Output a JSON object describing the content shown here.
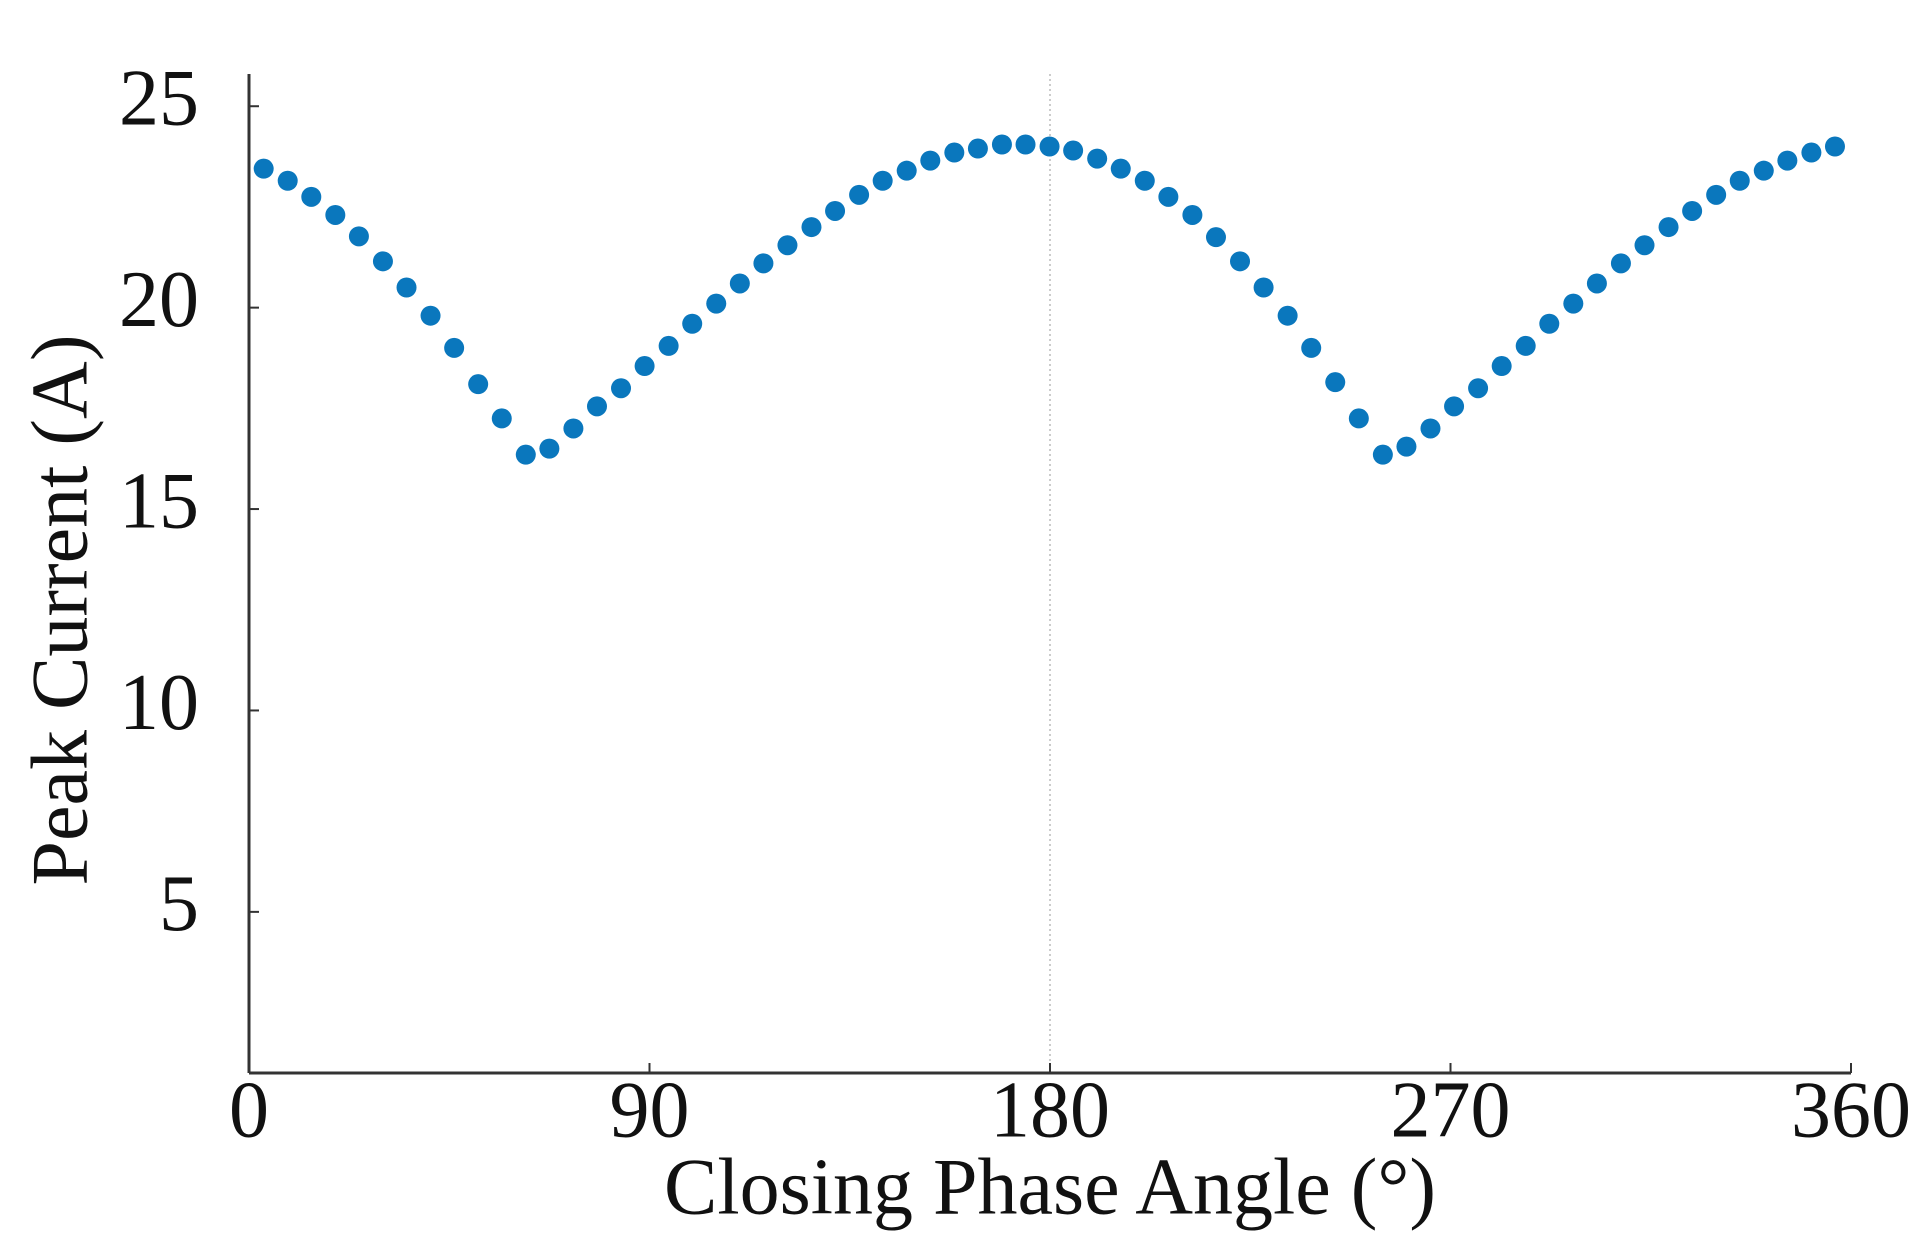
{
  "chart_data": {
    "type": "scatter",
    "xlabel": "Closing Phase Angle (°)",
    "ylabel": "Peak Current (A)",
    "xlim": [
      0,
      360
    ],
    "xticks": [
      0,
      90,
      180,
      270,
      360
    ],
    "ylim": [
      1,
      25.8
    ],
    "yticks": [
      5,
      10,
      15,
      20,
      25
    ],
    "vline": 180,
    "color": "#0a77bd",
    "x": [
      3.3,
      8.7,
      14.0,
      19.4,
      24.7,
      30.1,
      35.4,
      40.8,
      46.1,
      51.5,
      56.8,
      62.2,
      67.5,
      72.9,
      78.2,
      83.6,
      88.9,
      94.3,
      99.6,
      105.0,
      110.3,
      115.6,
      121.0,
      126.4,
      131.7,
      137.1,
      142.4,
      147.8,
      153.1,
      158.5,
      163.8,
      169.2,
      174.5,
      179.9,
      185.2,
      190.6,
      195.9,
      201.3,
      206.6,
      212.0,
      217.3,
      222.7,
      228.0,
      233.4,
      238.7,
      244.1,
      249.4,
      254.8,
      260.1,
      265.5,
      270.8,
      276.2,
      281.5,
      286.9,
      292.2,
      297.6,
      302.9,
      308.3,
      313.6,
      319.0,
      324.3,
      329.7,
      335.0,
      340.4,
      345.7,
      351.1,
      356.4
    ],
    "values": [
      23.45,
      23.15,
      22.75,
      22.3,
      21.77,
      21.15,
      20.5,
      19.8,
      19.0,
      18.1,
      17.25,
      16.35,
      16.5,
      17.0,
      17.55,
      18.0,
      18.55,
      19.05,
      19.6,
      20.1,
      20.6,
      21.1,
      21.55,
      22.0,
      22.4,
      22.8,
      23.15,
      23.4,
      23.65,
      23.85,
      23.95,
      24.05,
      24.05,
      24.0,
      23.9,
      23.7,
      23.45,
      23.15,
      22.75,
      22.3,
      21.75,
      21.15,
      20.5,
      19.8,
      19.0,
      18.15,
      17.25,
      16.35,
      16.55,
      17.0,
      17.55,
      18.0,
      18.55,
      19.05,
      19.6,
      20.1,
      20.6,
      21.1,
      21.55,
      22.0,
      22.4,
      22.8,
      23.15,
      23.4,
      23.65,
      23.85,
      24.0
    ]
  }
}
